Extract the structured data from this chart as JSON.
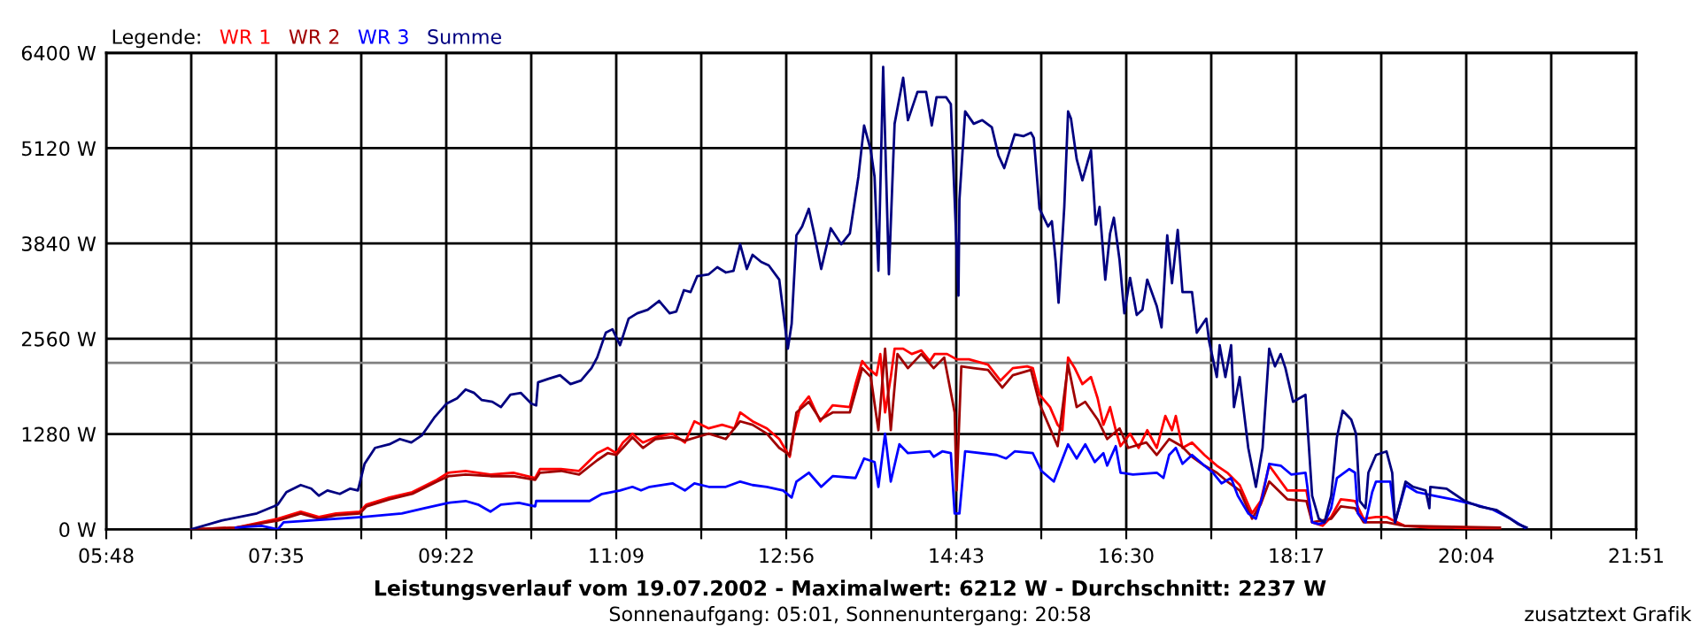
{
  "chart_data": {
    "type": "line",
    "title": "Leistungsverlauf vom 19.07.2002 - Maximalwert: 6212 W - Durchschnitt: 2237 W",
    "subtitle": "Sonnenaufgang: 05:01, Sonnenuntergang: 20:58",
    "legend_title": "Legende:",
    "annotations": [
      "zusatztext Grafik"
    ],
    "xlim": [
      5.8,
      21.85
    ],
    "xticks": [
      {
        "value": 5.8,
        "label": "05:48"
      },
      {
        "value": 6.6917,
        "label": null
      },
      {
        "value": 7.5833,
        "label": "07:35"
      },
      {
        "value": 8.475,
        "label": null
      },
      {
        "value": 9.3667,
        "label": "09:22"
      },
      {
        "value": 10.2583,
        "label": null
      },
      {
        "value": 11.15,
        "label": "11:09"
      },
      {
        "value": 12.0417,
        "label": null
      },
      {
        "value": 12.9333,
        "label": "12:56"
      },
      {
        "value": 13.825,
        "label": null
      },
      {
        "value": 14.7167,
        "label": "14:43"
      },
      {
        "value": 15.6083,
        "label": null
      },
      {
        "value": 16.5,
        "label": "16:30"
      },
      {
        "value": 17.3917,
        "label": null
      },
      {
        "value": 18.2833,
        "label": "18:17"
      },
      {
        "value": 19.175,
        "label": null
      },
      {
        "value": 20.0667,
        "label": "20:04"
      },
      {
        "value": 20.9583,
        "label": null
      },
      {
        "value": 21.85,
        "label": "21:51"
      }
    ],
    "ylim": [
      0,
      6400
    ],
    "yticks": [
      {
        "value": 0,
        "label": "0 W"
      },
      {
        "value": 1280,
        "label": "1280 W"
      },
      {
        "value": 2560,
        "label": "2560 W"
      },
      {
        "value": 3840,
        "label": "3840 W"
      },
      {
        "value": 5120,
        "label": "5120 W"
      },
      {
        "value": 6400,
        "label": "6400 W"
      }
    ],
    "grid": true,
    "legend": "top left",
    "marker": "none",
    "line_style": "solid",
    "ref_lines": [
      {
        "axis": "y",
        "value": 2237,
        "color": "#808080"
      }
    ],
    "series": [
      {
        "name": "WR 1",
        "color": "#ff0000",
        "x": [
          6.69,
          7.16,
          7.6,
          7.84,
          8.03,
          8.21,
          8.46,
          8.53,
          8.77,
          9.01,
          9.27,
          9.39,
          9.57,
          9.83,
          10.07,
          10.3,
          10.35,
          10.57,
          10.76,
          10.95,
          11.06,
          11.15,
          11.22,
          11.32,
          11.43,
          11.56,
          11.74,
          11.87,
          11.97,
          12.12,
          12.26,
          12.39,
          12.45,
          12.58,
          12.73,
          12.86,
          12.97,
          13.01,
          13.08,
          13.17,
          13.29,
          13.42,
          13.6,
          13.66,
          13.73,
          13.79,
          13.88,
          13.92,
          13.97,
          14.03,
          14.07,
          14.16,
          14.25,
          14.35,
          14.44,
          14.49,
          14.62,
          14.72,
          14.85,
          15.05,
          15.18,
          15.31,
          15.46,
          15.52,
          15.59,
          15.7,
          15.78,
          15.83,
          15.89,
          15.96,
          16.04,
          16.13,
          16.2,
          16.26,
          16.33,
          16.39,
          16.44,
          16.54,
          16.63,
          16.72,
          16.82,
          16.91,
          16.98,
          17.02,
          17.09,
          17.19,
          17.32,
          17.45,
          17.56,
          17.69,
          17.82,
          17.91,
          18.0,
          18.19,
          18.3,
          18.39,
          18.45,
          18.56,
          18.65,
          18.75,
          18.9,
          18.99,
          19.12,
          19.23,
          19.3,
          19.42,
          19.68,
          19.92,
          20.16,
          20.42
        ],
        "values": [
          0,
          24,
          143,
          238,
          167,
          214,
          238,
          333,
          428,
          500,
          666,
          761,
          785,
          737,
          761,
          690,
          809,
          809,
          785,
          1023,
          1094,
          1023,
          1166,
          1285,
          1166,
          1237,
          1285,
          1166,
          1451,
          1356,
          1404,
          1356,
          1570,
          1451,
          1356,
          1213,
          975,
          1285,
          1642,
          1784,
          1451,
          1665,
          1642,
          1951,
          2260,
          2165,
          2070,
          2355,
          1570,
          2046,
          2427,
          2427,
          2355,
          2403,
          2260,
          2355,
          2355,
          2284,
          2284,
          2212,
          1998,
          2165,
          2189,
          2165,
          1808,
          1642,
          1404,
          1332,
          2308,
          2165,
          1951,
          2046,
          1760,
          1404,
          1642,
          1332,
          1118,
          1285,
          1094,
          1332,
          1094,
          1523,
          1332,
          1523,
          1094,
          1166,
          999,
          856,
          761,
          595,
          214,
          381,
          856,
          523,
          523,
          523,
          95,
          48,
          167,
          404,
          381,
          143,
          167,
          167,
          119,
          48,
          24,
          24,
          0,
          0
        ]
      },
      {
        "name": "WR 2",
        "color": "#a00000",
        "x": [
          6.69,
          7.16,
          7.6,
          7.84,
          8.03,
          8.21,
          8.46,
          8.53,
          8.77,
          9.01,
          9.27,
          9.39,
          9.57,
          9.83,
          10.07,
          10.3,
          10.35,
          10.57,
          10.76,
          10.95,
          11.06,
          11.15,
          11.22,
          11.32,
          11.43,
          11.56,
          11.74,
          11.87,
          11.99,
          12.12,
          12.3,
          12.45,
          12.58,
          12.73,
          12.86,
          12.97,
          13.04,
          13.17,
          13.29,
          13.42,
          13.6,
          13.73,
          13.82,
          13.9,
          13.97,
          14.03,
          14.1,
          14.21,
          14.35,
          14.48,
          14.59,
          14.7,
          14.72,
          14.77,
          14.9,
          15.05,
          15.2,
          15.31,
          15.5,
          15.59,
          15.78,
          15.89,
          15.98,
          16.07,
          16.2,
          16.3,
          16.43,
          16.52,
          16.71,
          16.82,
          16.95,
          17.08,
          17.19,
          17.32,
          17.45,
          17.56,
          17.69,
          17.82,
          17.91,
          18.0,
          18.19,
          18.39,
          18.45,
          18.65,
          18.75,
          18.9,
          18.99,
          19.23,
          19.42,
          20.42
        ],
        "values": [
          0,
          24,
          119,
          214,
          143,
          190,
          214,
          309,
          404,
          476,
          642,
          714,
          737,
          714,
          714,
          666,
          761,
          785,
          737,
          928,
          1023,
          999,
          1094,
          1237,
          1094,
          1213,
          1237,
          1190,
          1237,
          1285,
          1213,
          1451,
          1404,
          1285,
          1094,
          999,
          1570,
          1713,
          1475,
          1570,
          1570,
          2165,
          2046,
          1332,
          2427,
          1332,
          2355,
          2165,
          2355,
          2165,
          2308,
          1570,
          523,
          2189,
          2165,
          2141,
          1903,
          2070,
          2141,
          1689,
          1118,
          2212,
          1642,
          1713,
          1475,
          1213,
          1356,
          1094,
          1166,
          999,
          1213,
          1118,
          975,
          856,
          761,
          642,
          523,
          143,
          333,
          642,
          404,
          381,
          95,
          143,
          309,
          285,
          95,
          95,
          48,
          24
        ]
      },
      {
        "name": "WR 3",
        "color": "#0000ff",
        "x": [
          7.16,
          7.43,
          7.6,
          7.66,
          8.49,
          8.9,
          9.14,
          9.39,
          9.57,
          9.7,
          9.83,
          9.94,
          10.13,
          10.3,
          10.31,
          10.48,
          10.63,
          10.87,
          11.0,
          11.19,
          11.32,
          11.41,
          11.5,
          11.74,
          11.87,
          11.97,
          12.12,
          12.3,
          12.45,
          12.58,
          12.73,
          12.9,
          12.99,
          13.04,
          13.17,
          13.3,
          13.42,
          13.66,
          13.75,
          13.86,
          13.9,
          13.97,
          14.03,
          14.12,
          14.21,
          14.44,
          14.48,
          14.57,
          14.66,
          14.7,
          14.75,
          14.81,
          15.14,
          15.24,
          15.33,
          15.52,
          15.61,
          15.74,
          15.89,
          15.98,
          16.07,
          16.17,
          16.26,
          16.3,
          16.39,
          16.44,
          16.57,
          16.82,
          16.89,
          16.95,
          17.02,
          17.09,
          17.19,
          17.32,
          17.41,
          17.5,
          17.6,
          17.67,
          17.78,
          17.86,
          17.93,
          18.0,
          18.12,
          18.23,
          18.38,
          18.45,
          18.52,
          18.58,
          18.65,
          18.71,
          18.84,
          18.9,
          18.93,
          19.01,
          19.08,
          19.12,
          19.27,
          19.32,
          19.43,
          19.55,
          19.73,
          19.92,
          20.16,
          20.35,
          20.53,
          20.68
        ],
        "values": [
          24,
          48,
          0,
          95,
          167,
          214,
          285,
          357,
          381,
          333,
          238,
          333,
          357,
          309,
          381,
          381,
          381,
          381,
          476,
          523,
          571,
          523,
          571,
          618,
          523,
          618,
          571,
          571,
          642,
          595,
          571,
          523,
          428,
          642,
          761,
          571,
          714,
          690,
          952,
          904,
          571,
          1285,
          642,
          1142,
          1023,
          1047,
          975,
          1047,
          1023,
          214,
          214,
          1047,
          999,
          952,
          1047,
          1023,
          785,
          642,
          1142,
          952,
          1142,
          904,
          1023,
          856,
          1118,
          761,
          737,
          761,
          690,
          999,
          1094,
          880,
          999,
          856,
          761,
          618,
          690,
          452,
          214,
          143,
          452,
          880,
          856,
          737,
          761,
          95,
          71,
          95,
          285,
          690,
          809,
          761,
          214,
          95,
          500,
          642,
          642,
          95,
          595,
          500,
          452,
          404,
          333,
          262,
          143,
          24
        ]
      },
      {
        "name": "Summe",
        "color": "#000080",
        "x": [
          6.69,
          7.01,
          7.38,
          7.56,
          7.6,
          7.69,
          7.84,
          7.95,
          8.03,
          8.12,
          8.25,
          8.36,
          8.44,
          8.51,
          8.62,
          8.77,
          8.88,
          9.0,
          9.11,
          9.24,
          9.37,
          9.48,
          9.57,
          9.66,
          9.74,
          9.85,
          9.94,
          10.04,
          10.15,
          10.26,
          10.31,
          10.33,
          10.44,
          10.56,
          10.67,
          10.78,
          10.89,
          10.95,
          11.04,
          11.11,
          11.19,
          11.28,
          11.37,
          11.48,
          11.6,
          11.71,
          11.78,
          11.86,
          11.93,
          12.0,
          12.12,
          12.21,
          12.3,
          12.38,
          12.45,
          12.52,
          12.58,
          12.67,
          12.75,
          12.86,
          12.95,
          12.99,
          13.04,
          13.1,
          13.17,
          13.23,
          13.3,
          13.4,
          13.51,
          13.6,
          13.69,
          13.75,
          13.82,
          13.86,
          13.9,
          13.95,
          14.01,
          14.07,
          14.16,
          14.21,
          14.31,
          14.4,
          14.46,
          14.51,
          14.61,
          14.66,
          14.7,
          14.74,
          14.75,
          14.81,
          14.9,
          14.99,
          15.09,
          15.16,
          15.22,
          15.33,
          15.42,
          15.5,
          15.53,
          15.59,
          15.68,
          15.72,
          15.76,
          15.79,
          15.85,
          15.89,
          15.92,
          15.98,
          16.04,
          16.13,
          16.18,
          16.22,
          16.28,
          16.33,
          16.37,
          16.43,
          16.48,
          16.54,
          16.61,
          16.67,
          16.72,
          16.82,
          16.87,
          16.93,
          16.98,
          17.04,
          17.09,
          17.19,
          17.24,
          17.34,
          17.37,
          17.45,
          17.48,
          17.54,
          17.6,
          17.63,
          17.69,
          17.78,
          17.86,
          17.93,
          18.0,
          18.06,
          18.12,
          18.17,
          18.25,
          18.38,
          18.45,
          18.52,
          18.58,
          18.65,
          18.71,
          18.77,
          18.86,
          18.91,
          18.95,
          19.01,
          19.04,
          19.12,
          19.23,
          19.29,
          19.32,
          19.36,
          19.43,
          19.51,
          19.64,
          19.68,
          19.69,
          19.86,
          20.05,
          20.2,
          20.38,
          20.53,
          20.61,
          20.7
        ],
        "values": [
          0,
          119,
          214,
          309,
          333,
          500,
          595,
          547,
          452,
          523,
          476,
          547,
          523,
          880,
          1094,
          1142,
          1213,
          1166,
          1261,
          1499,
          1689,
          1760,
          1879,
          1832,
          1737,
          1713,
          1642,
          1808,
          1832,
          1689,
          1665,
          1975,
          2022,
          2070,
          1951,
          1998,
          2165,
          2308,
          2641,
          2688,
          2474,
          2831,
          2902,
          2950,
          3069,
          2902,
          2926,
          3212,
          3188,
          3402,
          3426,
          3521,
          3450,
          3473,
          3830,
          3497,
          3688,
          3592,
          3545,
          3354,
          2427,
          2760,
          3949,
          4068,
          4306,
          3949,
          3497,
          4044,
          3830,
          3973,
          4734,
          5424,
          5091,
          4734,
          3473,
          6212,
          3426,
          5448,
          6066,
          5496,
          5876,
          5876,
          5424,
          5805,
          5805,
          5710,
          4425,
          3140,
          4425,
          5614,
          5448,
          5496,
          5400,
          5020,
          4853,
          5305,
          5281,
          5329,
          5258,
          4306,
          4068,
          4139,
          3592,
          3045,
          4330,
          5614,
          5519,
          4972,
          4687,
          5091,
          4092,
          4330,
          3354,
          3973,
          4187,
          3616,
          2902,
          3378,
          2879,
          2950,
          3354,
          2998,
          2712,
          3949,
          3307,
          4021,
          3188,
          3188,
          2641,
          2831,
          2522,
          2046,
          2474,
          2046,
          2474,
          1642,
          2046,
          1094,
          571,
          1094,
          2427,
          2189,
          2355,
          2165,
          1713,
          1808,
          452,
          143,
          95,
          452,
          1237,
          1594,
          1475,
          1285,
          381,
          285,
          761,
          999,
          1047,
          761,
          95,
          285,
          642,
          571,
          523,
          285,
          571,
          547,
          381,
          309,
          262,
          143,
          71,
          24
        ]
      }
    ]
  }
}
